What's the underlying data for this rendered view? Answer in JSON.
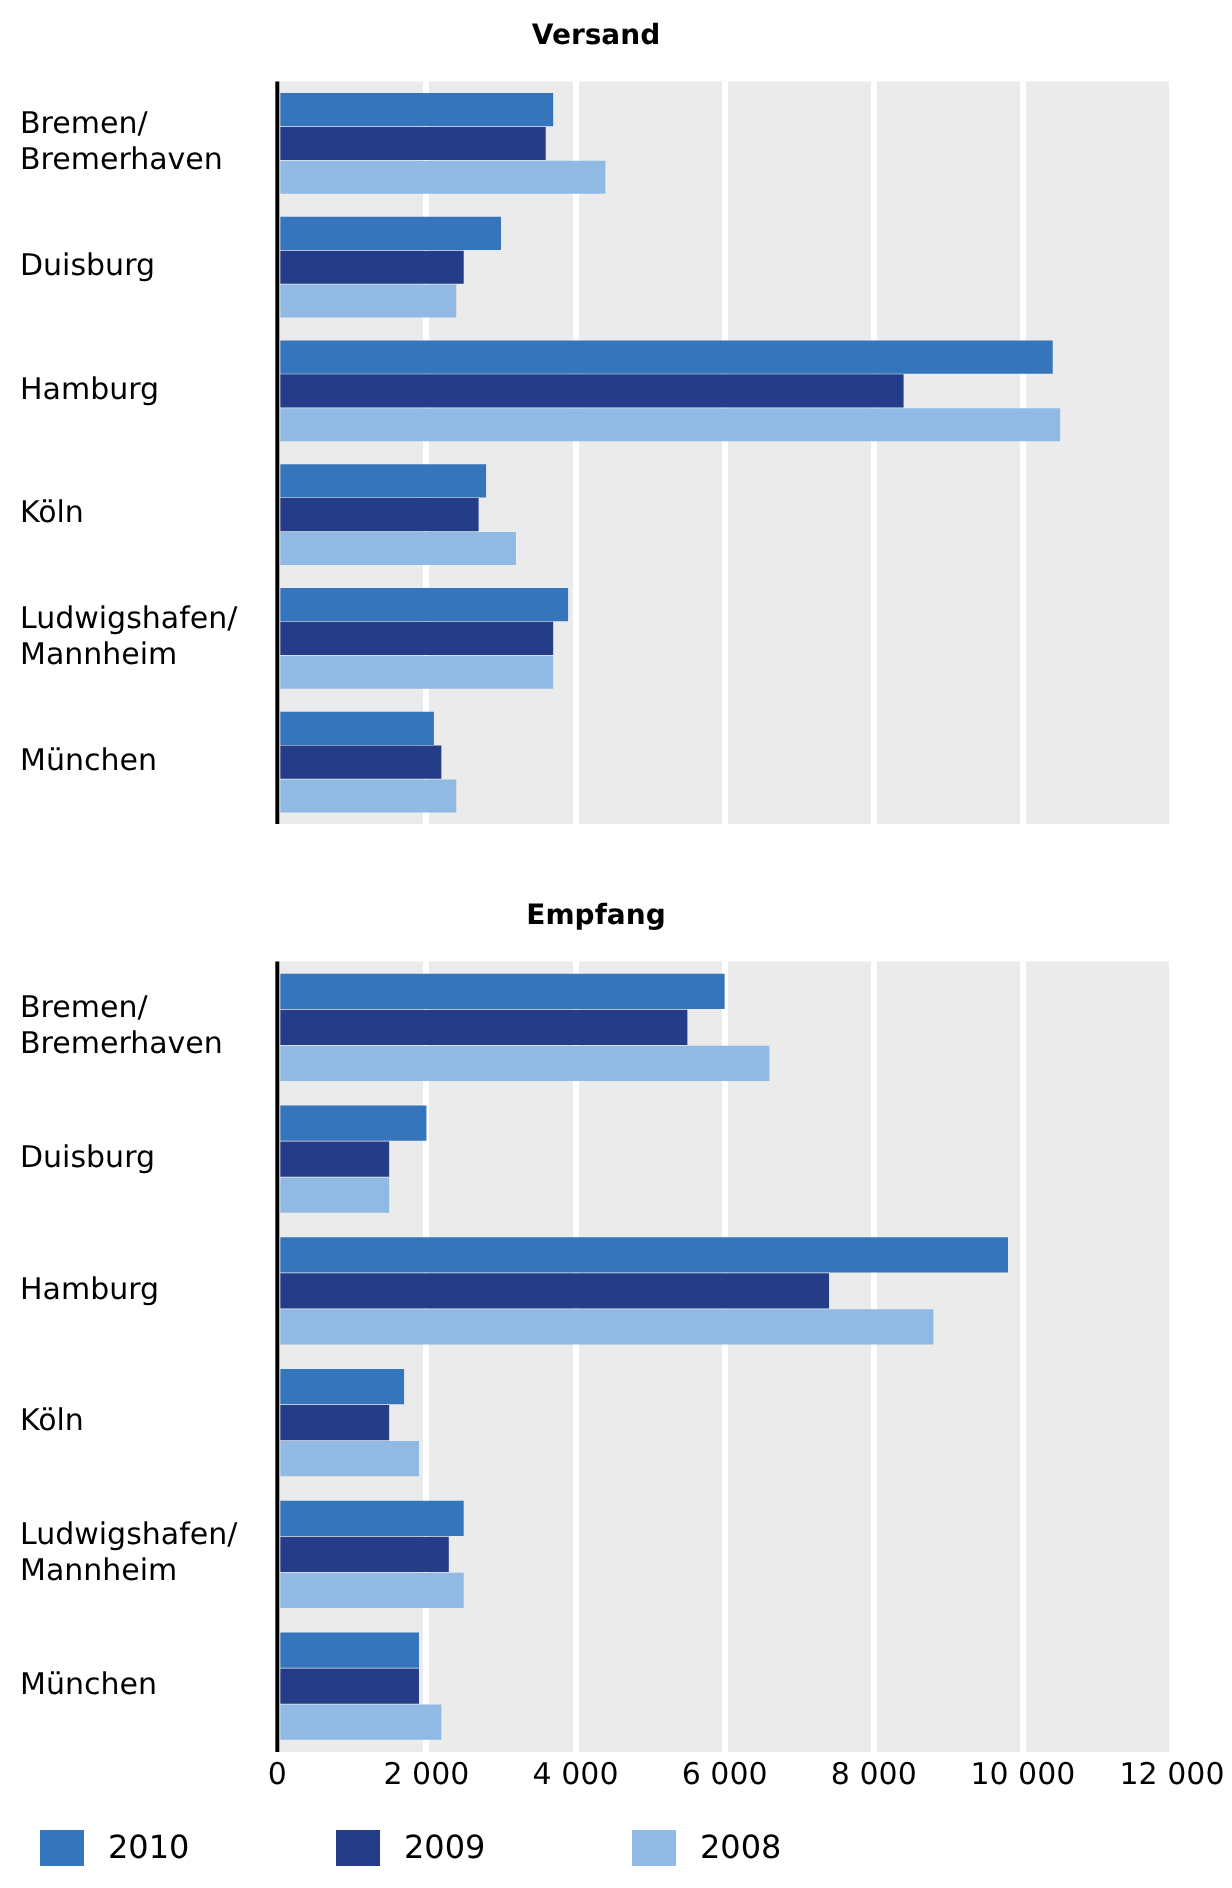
{
  "chart_data": [
    {
      "type": "bar",
      "orientation": "horizontal",
      "title": "Versand",
      "categories": [
        "Bremen/Bremerhaven",
        "Duisburg",
        "Hamburg",
        "Köln",
        "Ludwigshafen/Mannheim",
        "München"
      ],
      "series": [
        {
          "color": "#3575bc",
          "values": [
            3700,
            3000,
            10400,
            2800,
            3900,
            2100
          ]
        },
        {
          "color": "#253c88",
          "values": [
            3600,
            2500,
            8400,
            2700,
            3700,
            2200
          ]
        },
        {
          "color": "#90b9e3",
          "values": [
            4400,
            2400,
            10500,
            3200,
            3700,
            2400
          ]
        }
      ],
      "xlim": [
        0,
        12000
      ],
      "xticks": [
        0,
        2000,
        4000,
        6000,
        8000,
        10000,
        12000
      ],
      "tick_labels": "y",
      "grid": "x",
      "legend": false
    },
    {
      "type": "bar",
      "orientation": "horizontal",
      "title": "Empfang",
      "categories": [
        "Bremen/Bremerhaven",
        "Duisburg",
        "Hamburg",
        "Köln",
        "Ludwigshafen/Mannheim",
        "München"
      ],
      "series": [
        {
          "name": "2010",
          "color": "#3575bc",
          "values": [
            6000,
            2000,
            9800,
            1700,
            2500,
            1900
          ]
        },
        {
          "name": "2009",
          "color": "#253c88",
          "values": [
            5500,
            1500,
            7400,
            1500,
            2300,
            1900
          ]
        },
        {
          "name": "2008",
          "color": "#90b9e3",
          "values": [
            6600,
            1500,
            8800,
            1900,
            2500,
            2200
          ]
        }
      ],
      "xlim": [
        0,
        12000
      ],
      "xticks": [
        {
          "value": 0,
          "label": "0"
        },
        {
          "value": 2000,
          "label": "2 000"
        },
        {
          "value": 4000,
          "label": "4 000"
        },
        {
          "value": 6000,
          "label": "6 000"
        },
        {
          "value": 8000,
          "label": "8 000"
        },
        {
          "value": 10000,
          "label": "10 000"
        },
        {
          "value": 12000,
          "label": "12 000"
        }
      ],
      "grid": "x",
      "legend": "bottom"
    }
  ]
}
